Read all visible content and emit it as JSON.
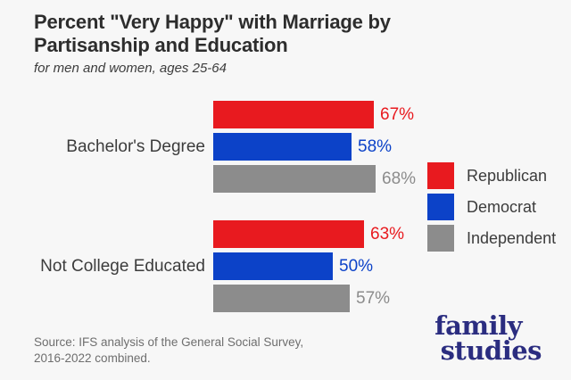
{
  "header": {
    "title": "Percent \"Very Happy\" with Marriage by Partisanship and Education",
    "subtitle": "for men and women, ages 25-64"
  },
  "chart_data": {
    "type": "bar",
    "orientation": "horizontal",
    "title": "Percent \"Very Happy\" with Marriage by Partisanship and Education",
    "subtitle": "for men and women, ages 25-64",
    "categories": [
      "Bachelor's Degree",
      "Not College Educated"
    ],
    "series": [
      {
        "name": "Republican",
        "color": "#e81a1f",
        "values": [
          67,
          63
        ]
      },
      {
        "name": "Democrat",
        "color": "#0c42c8",
        "values": [
          58,
          50
        ]
      },
      {
        "name": "Independent",
        "color": "#8c8c8c",
        "values": [
          68,
          57
        ]
      }
    ],
    "value_suffix": "%",
    "xlim": [
      0,
      100
    ],
    "grid": false,
    "legend_position": "right",
    "value_labels": "outside-end"
  },
  "source": {
    "line1": "Source: IFS analysis of the General Social Survey,",
    "line2": "2016-2022 combined."
  },
  "logo": {
    "line1": "family",
    "line2": "studies"
  },
  "colors": {
    "background": "#f7f7f7",
    "title_text": "#2d2d2d",
    "label_text": "#3c3c3c",
    "source_text": "#6e6e6e",
    "logo_navy": "#2b2d80"
  }
}
